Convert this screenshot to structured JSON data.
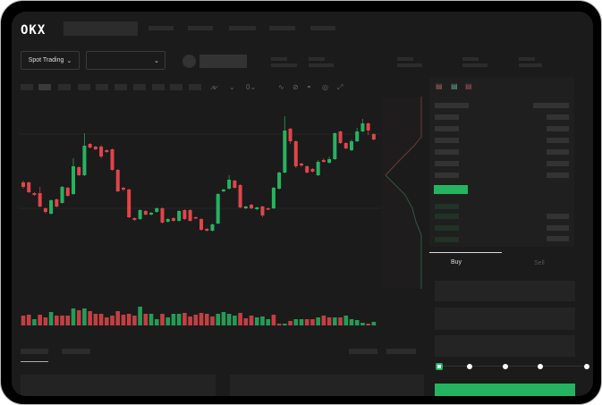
{
  "header": {
    "logo": "OKX"
  },
  "market": {
    "mode_label": "Spot Trading"
  },
  "trade": {
    "tabs": [
      {
        "label": "Buy",
        "active": true
      },
      {
        "label": "Sell",
        "active": false
      }
    ],
    "leverage_slider_value": 0
  },
  "colors": {
    "up": "#26b360",
    "down": "#e0454a",
    "background": "#1b1b1b"
  },
  "toolbar": {
    "icons": [
      "indicator-icon",
      "chart-type-icon",
      "interval-icon",
      "line-icon",
      "ruler-icon",
      "snapshot-icon",
      "settings-icon",
      "fullscreen-icon"
    ]
  },
  "orderbook": {
    "icons": [
      "orderbook-both-icon",
      "orderbook-bids-icon",
      "orderbook-asks-icon"
    ]
  },
  "chart": {
    "type": "candlestick",
    "candles": [
      [
        97,
        92,
        99,
        90
      ],
      [
        97,
        86,
        98,
        85
      ],
      [
        85,
        83,
        86,
        82
      ],
      [
        85,
        70,
        92,
        69
      ],
      [
        68,
        64,
        69,
        62
      ],
      [
        62,
        77,
        78,
        61
      ],
      [
        78,
        70,
        79,
        69
      ],
      [
        74,
        92,
        93,
        73
      ],
      [
        91,
        82,
        92,
        81
      ],
      [
        84,
        115,
        124,
        83
      ],
      [
        114,
        105,
        115,
        104
      ],
      [
        105,
        138,
        152,
        104
      ],
      [
        140,
        136,
        141,
        135
      ],
      [
        137,
        134,
        138,
        133
      ],
      [
        137,
        126,
        139,
        124
      ],
      [
        133,
        131,
        134,
        130
      ],
      [
        134,
        111,
        135,
        110
      ],
      [
        111,
        87,
        112,
        86
      ],
      [
        91,
        89,
        92,
        87
      ],
      [
        89,
        58,
        90,
        57
      ],
      [
        57,
        55,
        58,
        54
      ],
      [
        56,
        66,
        67,
        55
      ],
      [
        65,
        61,
        66,
        60
      ],
      [
        61,
        63,
        64,
        60
      ],
      [
        64,
        68,
        69,
        63
      ],
      [
        68,
        52,
        69,
        51
      ],
      [
        53,
        56,
        57,
        52
      ],
      [
        57,
        54,
        58,
        53
      ],
      [
        54,
        65,
        66,
        53
      ],
      [
        66,
        56,
        67,
        55
      ],
      [
        66,
        54,
        67,
        53
      ],
      [
        58,
        57,
        59,
        56
      ],
      [
        56,
        44,
        57,
        43
      ],
      [
        45,
        43,
        46,
        42
      ],
      [
        43,
        50,
        51,
        42
      ],
      [
        51,
        84,
        85,
        50
      ],
      [
        87,
        89,
        90,
        86
      ],
      [
        90,
        100,
        105,
        89
      ],
      [
        99,
        91,
        100,
        90
      ],
      [
        94,
        69,
        95,
        68
      ],
      [
        68,
        70,
        71,
        67
      ],
      [
        72,
        68,
        73,
        67
      ],
      [
        67,
        69,
        70,
        66
      ],
      [
        70,
        60,
        71,
        58
      ],
      [
        68,
        67,
        69,
        66
      ],
      [
        68,
        91,
        92,
        67
      ],
      [
        90,
        108,
        109,
        89
      ],
      [
        108,
        155,
        171,
        107
      ],
      [
        157,
        143,
        158,
        140
      ],
      [
        143,
        115,
        144,
        113
      ],
      [
        118,
        116,
        119,
        114
      ],
      [
        115,
        108,
        116,
        107
      ],
      [
        112,
        109,
        113,
        108
      ],
      [
        105,
        120,
        122,
        104
      ],
      [
        122,
        120,
        124,
        119
      ],
      [
        119,
        123,
        126,
        118
      ],
      [
        123,
        152,
        153,
        122
      ],
      [
        154,
        141,
        155,
        140
      ],
      [
        141,
        135,
        142,
        134
      ],
      [
        133,
        143,
        145,
        132
      ],
      [
        143,
        154,
        158,
        142
      ],
      [
        154,
        163,
        168,
        153
      ],
      [
        163,
        155,
        164,
        150
      ],
      [
        151,
        145,
        152,
        144
      ]
    ],
    "volume": [
      [
        11,
        "down"
      ],
      [
        12,
        "down"
      ],
      [
        7,
        "up"
      ],
      [
        12,
        "down"
      ],
      [
        9,
        "down"
      ],
      [
        15,
        "up"
      ],
      [
        11,
        "down"
      ],
      [
        11,
        "down"
      ],
      [
        11,
        "down"
      ],
      [
        19,
        "up"
      ],
      [
        17,
        "down"
      ],
      [
        19,
        "up"
      ],
      [
        16,
        "down"
      ],
      [
        13,
        "down"
      ],
      [
        13,
        "down"
      ],
      [
        9,
        "down"
      ],
      [
        11,
        "down"
      ],
      [
        16,
        "down"
      ],
      [
        12,
        "down"
      ],
      [
        13,
        "down"
      ],
      [
        11,
        "down"
      ],
      [
        21,
        "up"
      ],
      [
        13,
        "down"
      ],
      [
        13,
        "up"
      ],
      [
        7,
        "up"
      ],
      [
        13,
        "down"
      ],
      [
        9,
        "up"
      ],
      [
        13,
        "up"
      ],
      [
        13,
        "up"
      ],
      [
        14,
        "down"
      ],
      [
        10,
        "down"
      ],
      [
        12,
        "down"
      ],
      [
        14,
        "down"
      ],
      [
        13,
        "down"
      ],
      [
        10,
        "down"
      ],
      [
        13,
        "up"
      ],
      [
        15,
        "up"
      ],
      [
        13,
        "up"
      ],
      [
        11,
        "up"
      ],
      [
        14,
        "down"
      ],
      [
        8,
        "down"
      ],
      [
        11,
        "down"
      ],
      [
        9,
        "up"
      ],
      [
        10,
        "up"
      ],
      [
        7,
        "up"
      ],
      [
        12,
        "down"
      ],
      [
        2,
        "down"
      ],
      [
        2,
        "up"
      ],
      [
        5,
        "down"
      ],
      [
        7,
        "up"
      ],
      [
        7,
        "up"
      ],
      [
        7,
        "down"
      ],
      [
        7,
        "down"
      ],
      [
        9,
        "up"
      ],
      [
        11,
        "down"
      ],
      [
        9,
        "down"
      ],
      [
        9,
        "up"
      ],
      [
        9,
        "down"
      ],
      [
        11,
        "up"
      ],
      [
        7,
        "up"
      ],
      [
        6,
        "up"
      ],
      [
        3,
        "up"
      ],
      [
        2,
        "down"
      ],
      [
        4,
        "up"
      ]
    ]
  }
}
